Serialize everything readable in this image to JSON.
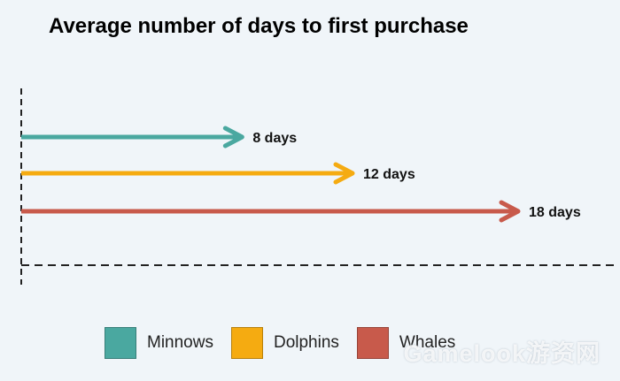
{
  "chart_data": {
    "type": "bar",
    "orientation": "horizontal",
    "title": "Average number of days to first purchase",
    "categories": [
      "Minnows",
      "Dolphins",
      "Whales"
    ],
    "values": [
      8,
      12,
      18
    ],
    "value_labels": [
      "8 days",
      "12 days",
      "18 days"
    ],
    "unit": "days",
    "colors": [
      "#4aa8a0",
      "#f5ab11",
      "#c85a4b"
    ],
    "xlim": [
      0,
      18
    ],
    "xlabel": "",
    "ylabel": "",
    "grid": false,
    "legend_position": "bottom"
  },
  "legend": {
    "items": [
      {
        "label": "Minnows",
        "color": "#4aa8a0"
      },
      {
        "label": "Dolphins",
        "color": "#f5ab11"
      },
      {
        "label": "Whales",
        "color": "#c85a4b"
      }
    ]
  },
  "watermark": {
    "text": "Gamelook游资网"
  }
}
